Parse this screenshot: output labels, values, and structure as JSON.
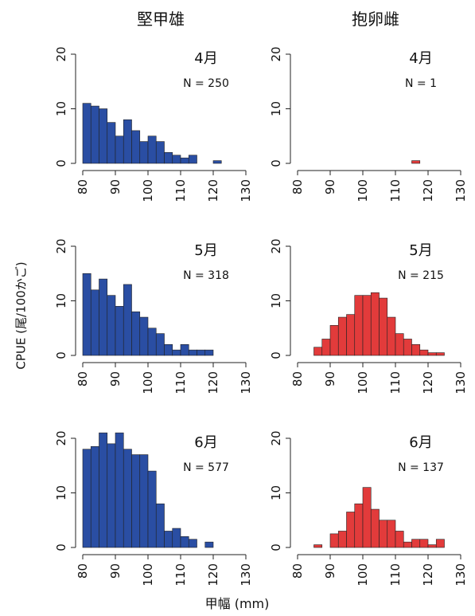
{
  "figure": {
    "column_titles": [
      "堅甲雄",
      "抱卵雌"
    ],
    "ylabel": "CPUE (尾/100かご)",
    "xlabel": "甲幅 (mm)"
  },
  "chart_data": [
    {
      "type": "bar",
      "panel": "4月 堅甲雄",
      "month": "4月",
      "n_label": "N = 250",
      "color": "#2a4ea3",
      "bin_width": 2.5,
      "xlim": [
        80,
        130
      ],
      "ylim": [
        0,
        20
      ],
      "xticks": [
        80,
        90,
        100,
        110,
        120,
        130
      ],
      "yticks": [
        0,
        10,
        20
      ],
      "x": [
        80,
        82.5,
        85,
        87.5,
        90,
        92.5,
        95,
        97.5,
        100,
        102.5,
        105,
        107.5,
        110,
        112.5,
        115,
        117.5,
        120
      ],
      "values": [
        11,
        10.5,
        10,
        7.5,
        5,
        8,
        6,
        4,
        5,
        4,
        2,
        1.5,
        1,
        1.5,
        0,
        0,
        0.5
      ]
    },
    {
      "type": "bar",
      "panel": "4月 抱卵雌",
      "month": "4月",
      "n_label": "N = 1",
      "color": "#e23b3b",
      "bin_width": 2.5,
      "xlim": [
        80,
        130
      ],
      "ylim": [
        0,
        20
      ],
      "xticks": [
        80,
        90,
        100,
        110,
        120,
        130
      ],
      "yticks": [
        0,
        10,
        20
      ],
      "x": [
        115
      ],
      "values": [
        0.5
      ]
    },
    {
      "type": "bar",
      "panel": "5月 堅甲雄",
      "month": "5月",
      "n_label": "N = 318",
      "color": "#2a4ea3",
      "bin_width": 2.5,
      "xlim": [
        80,
        130
      ],
      "ylim": [
        0,
        20
      ],
      "xticks": [
        80,
        90,
        100,
        110,
        120,
        130
      ],
      "yticks": [
        0,
        10,
        20
      ],
      "x": [
        80,
        82.5,
        85,
        87.5,
        90,
        92.5,
        95,
        97.5,
        100,
        102.5,
        105,
        107.5,
        110,
        112.5,
        115,
        117.5
      ],
      "values": [
        15,
        12,
        14,
        11,
        9,
        13,
        8,
        7,
        5,
        4,
        2,
        1,
        2,
        1,
        1,
        1
      ]
    },
    {
      "type": "bar",
      "panel": "5月 抱卵雌",
      "month": "5月",
      "n_label": "N = 215",
      "color": "#e23b3b",
      "bin_width": 2.5,
      "xlim": [
        80,
        130
      ],
      "ylim": [
        0,
        20
      ],
      "xticks": [
        80,
        90,
        100,
        110,
        120,
        130
      ],
      "yticks": [
        0,
        10,
        20
      ],
      "x": [
        85,
        87.5,
        90,
        92.5,
        95,
        97.5,
        100,
        102.5,
        105,
        107.5,
        110,
        112.5,
        115,
        117.5,
        120,
        122.5
      ],
      "values": [
        1.5,
        3,
        5.5,
        7,
        7.5,
        11,
        11,
        11.5,
        10.5,
        7,
        4,
        3,
        2,
        1,
        0.5,
        0.5
      ]
    },
    {
      "type": "bar",
      "panel": "6月 堅甲雄",
      "month": "6月",
      "n_label": "N = 577",
      "color": "#2a4ea3",
      "bin_width": 2.5,
      "xlim": [
        80,
        130
      ],
      "ylim": [
        0,
        20
      ],
      "xticks": [
        80,
        90,
        100,
        110,
        120,
        130
      ],
      "yticks": [
        0,
        10,
        20
      ],
      "x": [
        80,
        82.5,
        85,
        87.5,
        90,
        92.5,
        95,
        97.5,
        100,
        102.5,
        105,
        107.5,
        110,
        112.5,
        115,
        117.5
      ],
      "values": [
        18,
        18.5,
        21,
        19,
        21,
        18,
        17,
        17,
        14,
        8,
        3,
        3.5,
        2,
        1.5,
        0,
        1
      ]
    },
    {
      "type": "bar",
      "panel": "6月 抱卵雌",
      "month": "6月",
      "n_label": "N = 137",
      "color": "#e23b3b",
      "bin_width": 2.5,
      "xlim": [
        80,
        130
      ],
      "ylim": [
        0,
        20
      ],
      "xticks": [
        80,
        90,
        100,
        110,
        120,
        130
      ],
      "yticks": [
        0,
        10,
        20
      ],
      "x": [
        85,
        87.5,
        90,
        92.5,
        95,
        97.5,
        100,
        102.5,
        105,
        107.5,
        110,
        112.5,
        115,
        117.5,
        120,
        122.5
      ],
      "values": [
        0.5,
        0,
        2.5,
        3,
        6.5,
        8,
        11,
        7,
        5,
        5,
        3,
        1,
        1.5,
        1.5,
        0.5,
        1.5
      ]
    }
  ]
}
